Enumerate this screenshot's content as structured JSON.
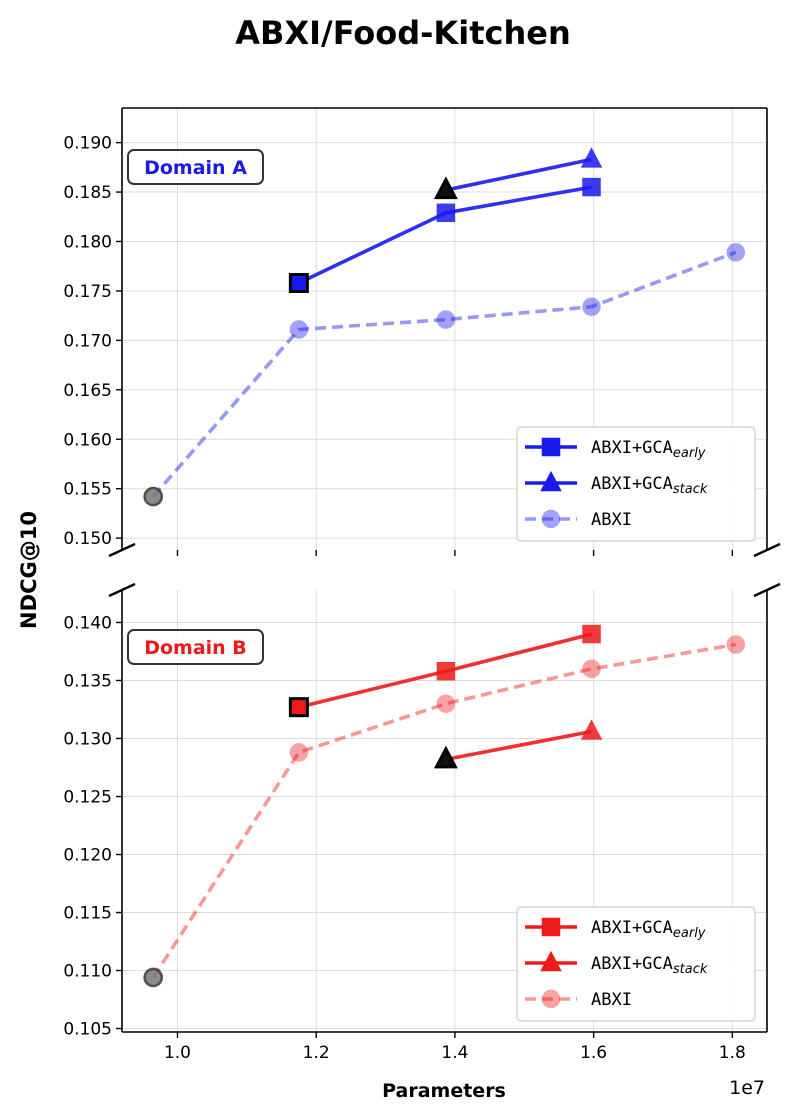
{
  "chart_data": {
    "type": "line",
    "title": "ABXI/Food-Kitchen",
    "xlabel": "Parameters",
    "ylabel": "NDCG@10",
    "x_offset_label": "1e7",
    "xlim": [
      0.92,
      1.85
    ],
    "x_ticks": [
      1.0,
      1.2,
      1.4,
      1.6,
      1.8
    ],
    "x_tick_labels": [
      "1.0",
      "1.2",
      "1.4",
      "1.6",
      "1.8"
    ],
    "grid": true,
    "panels": [
      {
        "name": "Domain A",
        "color": "#1a1aee",
        "ylim": [
          0.1488,
          0.1935
        ],
        "y_ticks": [
          0.15,
          0.155,
          0.16,
          0.165,
          0.17,
          0.175,
          0.18,
          0.185,
          0.19
        ],
        "y_tick_labels": [
          "0.150",
          "0.155",
          "0.160",
          "0.165",
          "0.170",
          "0.175",
          "0.180",
          "0.185",
          "0.190"
        ],
        "legend_location": "lower-right",
        "series": [
          {
            "name": "ABXI+GCA",
            "sub": "early",
            "marker": "square",
            "style": "solid",
            "x": [
              1.175,
              1.387,
              1.597
            ],
            "y": [
              0.1758,
              0.1829,
              0.1855
            ]
          },
          {
            "name": "ABXI+GCA",
            "sub": "stack",
            "marker": "triangle",
            "style": "solid",
            "x": [
              1.387,
              1.597
            ],
            "y": [
              0.1852,
              0.1883
            ]
          },
          {
            "name": "ABXI",
            "sub": "",
            "marker": "circle",
            "style": "dashed",
            "x": [
              0.965,
              1.175,
              1.387,
              1.597,
              1.805
            ],
            "y": [
              0.1542,
              0.1711,
              0.1721,
              0.1734,
              0.1789
            ]
          }
        ]
      },
      {
        "name": "Domain B",
        "color": "#ee1a1a",
        "ylim": [
          0.1047,
          0.1428
        ],
        "y_ticks": [
          0.105,
          0.11,
          0.115,
          0.12,
          0.125,
          0.13,
          0.135,
          0.14
        ],
        "y_tick_labels": [
          "0.105",
          "0.110",
          "0.115",
          "0.120",
          "0.125",
          "0.130",
          "0.135",
          "0.140"
        ],
        "legend_location": "lower-right",
        "series": [
          {
            "name": "ABXI+GCA",
            "sub": "early",
            "marker": "square",
            "style": "solid",
            "x": [
              1.175,
              1.387,
              1.597
            ],
            "y": [
              0.1327,
              0.1358,
              0.139
            ]
          },
          {
            "name": "ABXI+GCA",
            "sub": "stack",
            "marker": "triangle",
            "style": "solid",
            "x": [
              1.387,
              1.597
            ],
            "y": [
              0.1282,
              0.1306
            ]
          },
          {
            "name": "ABXI",
            "sub": "",
            "marker": "circle",
            "style": "dashed",
            "x": [
              0.965,
              1.175,
              1.387,
              1.597,
              1.805
            ],
            "y": [
              0.1094,
              0.1288,
              0.133,
              0.136,
              0.1381
            ]
          }
        ]
      }
    ]
  }
}
